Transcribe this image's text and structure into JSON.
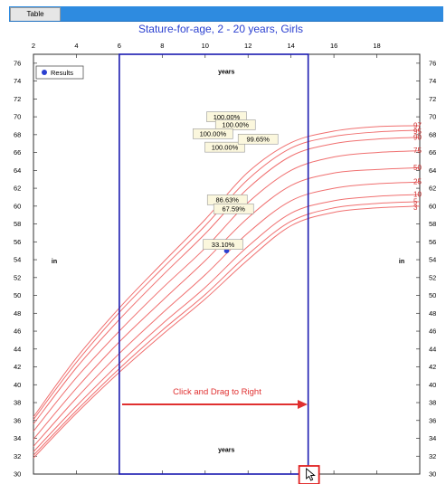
{
  "toolbar": {
    "tab_label": "Table"
  },
  "colors": {
    "accent": "#2e8be0",
    "title": "#2a3fd0",
    "curve": "#f07070",
    "marker": "#2a3fd0",
    "guide": "#1a1ab0",
    "highlight": "#e02020"
  },
  "chart_data": {
    "type": "line",
    "title": "Stature-for-age, 2 - 20 years, Girls",
    "xlabel": "years",
    "ylabel": "in",
    "xlim": [
      2,
      20
    ],
    "ylim": [
      30,
      77
    ],
    "x_ticks": [
      2,
      4,
      6,
      8,
      10,
      12,
      14,
      16,
      18
    ],
    "y_ticks": [
      30,
      32,
      34,
      36,
      38,
      40,
      42,
      44,
      46,
      48,
      50,
      52,
      54,
      56,
      58,
      60,
      62,
      64,
      66,
      68,
      70,
      72,
      74,
      76
    ],
    "legend": {
      "label": "Results",
      "position": "top-left"
    },
    "grid": false,
    "percentile_labels": [
      "97",
      "95",
      "90",
      "75",
      "50",
      "25",
      "10",
      "5",
      "3"
    ],
    "series": [
      {
        "name": "97",
        "x": [
          2,
          4,
          6,
          8,
          10,
          12,
          14,
          16,
          18,
          20
        ],
        "values": [
          36.4,
          43.0,
          48.6,
          53.6,
          58.5,
          63.8,
          67.1,
          68.4,
          68.9,
          69.0
        ]
      },
      {
        "name": "95",
        "x": [
          2,
          4,
          6,
          8,
          10,
          12,
          14,
          16,
          18,
          20
        ],
        "values": [
          36.1,
          42.5,
          48.1,
          53.0,
          57.8,
          63.0,
          66.5,
          67.8,
          68.3,
          68.5
        ]
      },
      {
        "name": "90",
        "x": [
          2,
          4,
          6,
          8,
          10,
          12,
          14,
          16,
          18,
          20
        ],
        "values": [
          35.6,
          41.9,
          47.3,
          52.2,
          56.9,
          62.0,
          65.6,
          67.0,
          67.5,
          67.7
        ]
      },
      {
        "name": "75",
        "x": [
          2,
          4,
          6,
          8,
          10,
          12,
          14,
          16,
          18,
          20
        ],
        "values": [
          34.8,
          40.8,
          46.0,
          50.8,
          55.3,
          60.4,
          64.0,
          65.5,
          66.0,
          66.2
        ]
      },
      {
        "name": "50",
        "x": [
          2,
          4,
          6,
          8,
          10,
          12,
          14,
          16,
          18,
          20
        ],
        "values": [
          33.9,
          39.6,
          44.8,
          49.4,
          53.9,
          58.7,
          62.3,
          63.7,
          64.1,
          64.3
        ]
      },
      {
        "name": "25",
        "x": [
          2,
          4,
          6,
          8,
          10,
          12,
          14,
          16,
          18,
          20
        ],
        "values": [
          33.1,
          38.5,
          43.5,
          48.0,
          52.3,
          57.0,
          60.6,
          62.0,
          62.5,
          62.7
        ]
      },
      {
        "name": "10",
        "x": [
          2,
          4,
          6,
          8,
          10,
          12,
          14,
          16,
          18,
          20
        ],
        "values": [
          32.5,
          37.6,
          42.4,
          46.8,
          50.9,
          55.5,
          59.2,
          60.6,
          61.1,
          61.3
        ]
      },
      {
        "name": "5",
        "x": [
          2,
          4,
          6,
          8,
          10,
          12,
          14,
          16,
          18,
          20
        ],
        "values": [
          32.1,
          37.1,
          41.8,
          46.1,
          50.1,
          54.6,
          58.3,
          59.8,
          60.3,
          60.5
        ]
      },
      {
        "name": "3",
        "x": [
          2,
          4,
          6,
          8,
          10,
          12,
          14,
          16,
          18,
          20
        ],
        "values": [
          31.8,
          36.8,
          41.4,
          45.6,
          49.6,
          54.0,
          57.8,
          59.3,
          59.8,
          60.0
        ]
      }
    ],
    "results": [
      {
        "x": 11.0,
        "y": 69.9,
        "label": "100.00%"
      },
      {
        "x": 11.2,
        "y": 69.0,
        "label": "100.00%"
      },
      {
        "x": 10.7,
        "y": 68.0,
        "label": "100.00%"
      },
      {
        "x": 11.0,
        "y": 66.5,
        "label": "100.00%"
      },
      {
        "x": 12.0,
        "y": 67.4,
        "label": "99.65%"
      },
      {
        "x": 11.2,
        "y": 60.6,
        "label": "86.63%"
      },
      {
        "x": 11.2,
        "y": 59.6,
        "label": "67.59%"
      },
      {
        "x": 11.0,
        "y": 55.0,
        "label": "33.10%"
      }
    ],
    "range_start_x": 6,
    "range_end_x": 14.8,
    "annotation": "Click and Drag to Right"
  }
}
